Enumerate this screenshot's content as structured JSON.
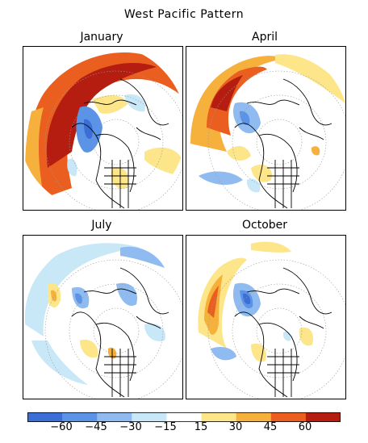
{
  "title": "West Pacific Pattern",
  "panels": [
    {
      "label": "January"
    },
    {
      "label": "April"
    },
    {
      "label": "July"
    },
    {
      "label": "October"
    }
  ],
  "colorbar": {
    "labels": [
      "−60",
      "−45",
      "−30",
      "−15",
      "15",
      "30",
      "45",
      "60"
    ],
    "colors": [
      "#3b6fd6",
      "#5b93e6",
      "#8fbbf0",
      "#c8e8f8",
      "#ffffff",
      "#fde58a",
      "#f6b03c",
      "#ea5f1f",
      "#b51d10"
    ]
  },
  "colors": {
    "land_lines": "#000000",
    "grid": "#9a9a9a"
  }
}
